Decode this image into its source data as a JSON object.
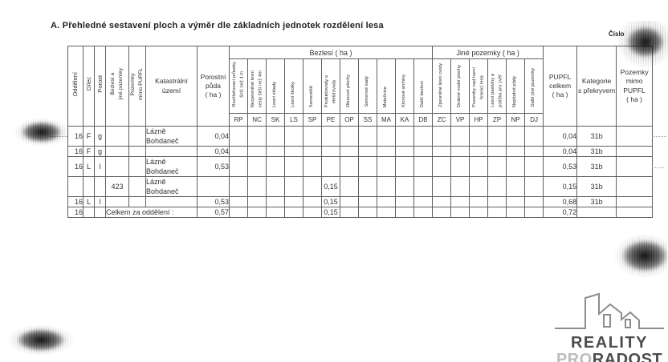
{
  "page": {
    "title": "A. Přehledné sestavení ploch a výměr dle základních jednotek rozdělení lesa"
  },
  "stamp": {
    "label": "Číslo"
  },
  "table": {
    "left_columns": [
      {
        "code": "oddeleni",
        "label": "Oddělení"
      },
      {
        "code": "dilec",
        "label": "Dílec"
      },
      {
        "code": "porost",
        "label": "Porost"
      },
      {
        "code": "bezlesi-a-jine-pozemky",
        "label": "Bezlesí a\njiné pozemky"
      },
      {
        "code": "pozemky-mimo-pupfl",
        "label": "Pozemky\nmimo PUPFL"
      }
    ],
    "katastralni_label": "Katastrální\núzemí",
    "porostni_label": "Porostní\npůda\n( ha )",
    "groups": [
      {
        "label": "Bezlesí ( ha )",
        "columns": [
          {
            "code": "RP",
            "label": "Rozčleňovací průseky\nširší než 4 m"
          },
          {
            "code": "NC",
            "label": "Nezpevněné lesní\ncesty širší než 4m"
          },
          {
            "code": "SK",
            "label": "Lesní sklady"
          },
          {
            "code": "LS",
            "label": "Lesní školky"
          },
          {
            "code": "SP",
            "label": "Semeniště"
          },
          {
            "code": "PE",
            "label": "Produktovody a\nelektrovody"
          },
          {
            "code": "OP",
            "label": "Okusové plochy"
          },
          {
            "code": "SS",
            "label": "Semenné sady"
          },
          {
            "code": "MA",
            "label": "Matečnice"
          },
          {
            "code": "KA",
            "label": "Klonové archivy"
          },
          {
            "code": "DB",
            "label": "Další bezlesí"
          }
        ]
      },
      {
        "label": "Jiné pozemky ( ha )",
        "columns": [
          {
            "code": "ZC",
            "label": "Zpevněné lesní cesty"
          },
          {
            "code": "VP",
            "label": "Drobné vodní plochy"
          },
          {
            "code": "HP",
            "label": "Pozemky nad horní\nhranicí lesa"
          },
          {
            "code": "ZP",
            "label": "Lesní pastviny a\npolíčka pro zvěř"
          },
          {
            "code": "NP",
            "label": "Neplodné půdy"
          },
          {
            "code": "DJ",
            "label": "Další jiné pozemky"
          }
        ]
      }
    ],
    "right_columns": [
      {
        "code": "pupfl-celkem",
        "label": "PUPFL\ncelkem\n( ha )"
      },
      {
        "code": "kategorie",
        "label": "Kategorie\ns překryvem"
      },
      {
        "code": "pozemky-mimo-pupfl-ha",
        "label": "Pozemky\nmimo\nPUPFL\n( ha )"
      }
    ],
    "rows": [
      {
        "sep": "dotted",
        "cells": [
          "16",
          "F",
          "g",
          "",
          "",
          "Lázně Bohdaneč",
          "0,04",
          "",
          "",
          "",
          "",
          "",
          "",
          "",
          "",
          "",
          "",
          "",
          "",
          "",
          "",
          "",
          "",
          "",
          "0,04",
          "31b",
          ""
        ]
      },
      {
        "sep": "solid",
        "cells": [
          "16",
          "F",
          "g",
          "",
          "",
          "",
          "0,04",
          "",
          "",
          "",
          "",
          "",
          "",
          "",
          "",
          "",
          "",
          "",
          "",
          "",
          "",
          "",
          "",
          "",
          "0,04",
          "31b",
          ""
        ]
      },
      {
        "sep": "dotted",
        "cells": [
          "16",
          "L",
          "l",
          "",
          "",
          "Lázně Bohdaneč",
          "0,53",
          "",
          "",
          "",
          "",
          "",
          "",
          "",
          "",
          "",
          "",
          "",
          "",
          "",
          "",
          "",
          "",
          "",
          "0,53",
          "31b",
          ""
        ]
      },
      {
        "sep": "dotted",
        "cells": [
          "",
          "",
          "",
          "423",
          "",
          "Lázně Bohdaneč",
          "",
          "",
          "",
          "",
          "",
          "",
          "0,15",
          "",
          "",
          "",
          "",
          "",
          "",
          "",
          "",
          "",
          "",
          "",
          "0,15",
          "31b",
          ""
        ]
      },
      {
        "sep": "solid",
        "cells": [
          "16",
          "L",
          "l",
          "",
          "",
          "",
          "0,53",
          "",
          "",
          "",
          "",
          "",
          "0,15",
          "",
          "",
          "",
          "",
          "",
          "",
          "",
          "",
          "",
          "",
          "",
          "0,68",
          "31b",
          ""
        ]
      },
      {
        "sep": "none",
        "merge": {
          "start": 3,
          "span": 3
        },
        "cells": [
          "16",
          "",
          "",
          "Celkem za oddělení :",
          "",
          "",
          "0,57",
          "",
          "",
          "",
          "",
          "",
          "0,15",
          "",
          "",
          "",
          "",
          "",
          "",
          "",
          "",
          "",
          "",
          "",
          "0,72",
          "",
          ""
        ]
      }
    ]
  },
  "logo": {
    "line1": "REALITY",
    "line2_light": "PRO",
    "line2_dark": "RADOST"
  }
}
